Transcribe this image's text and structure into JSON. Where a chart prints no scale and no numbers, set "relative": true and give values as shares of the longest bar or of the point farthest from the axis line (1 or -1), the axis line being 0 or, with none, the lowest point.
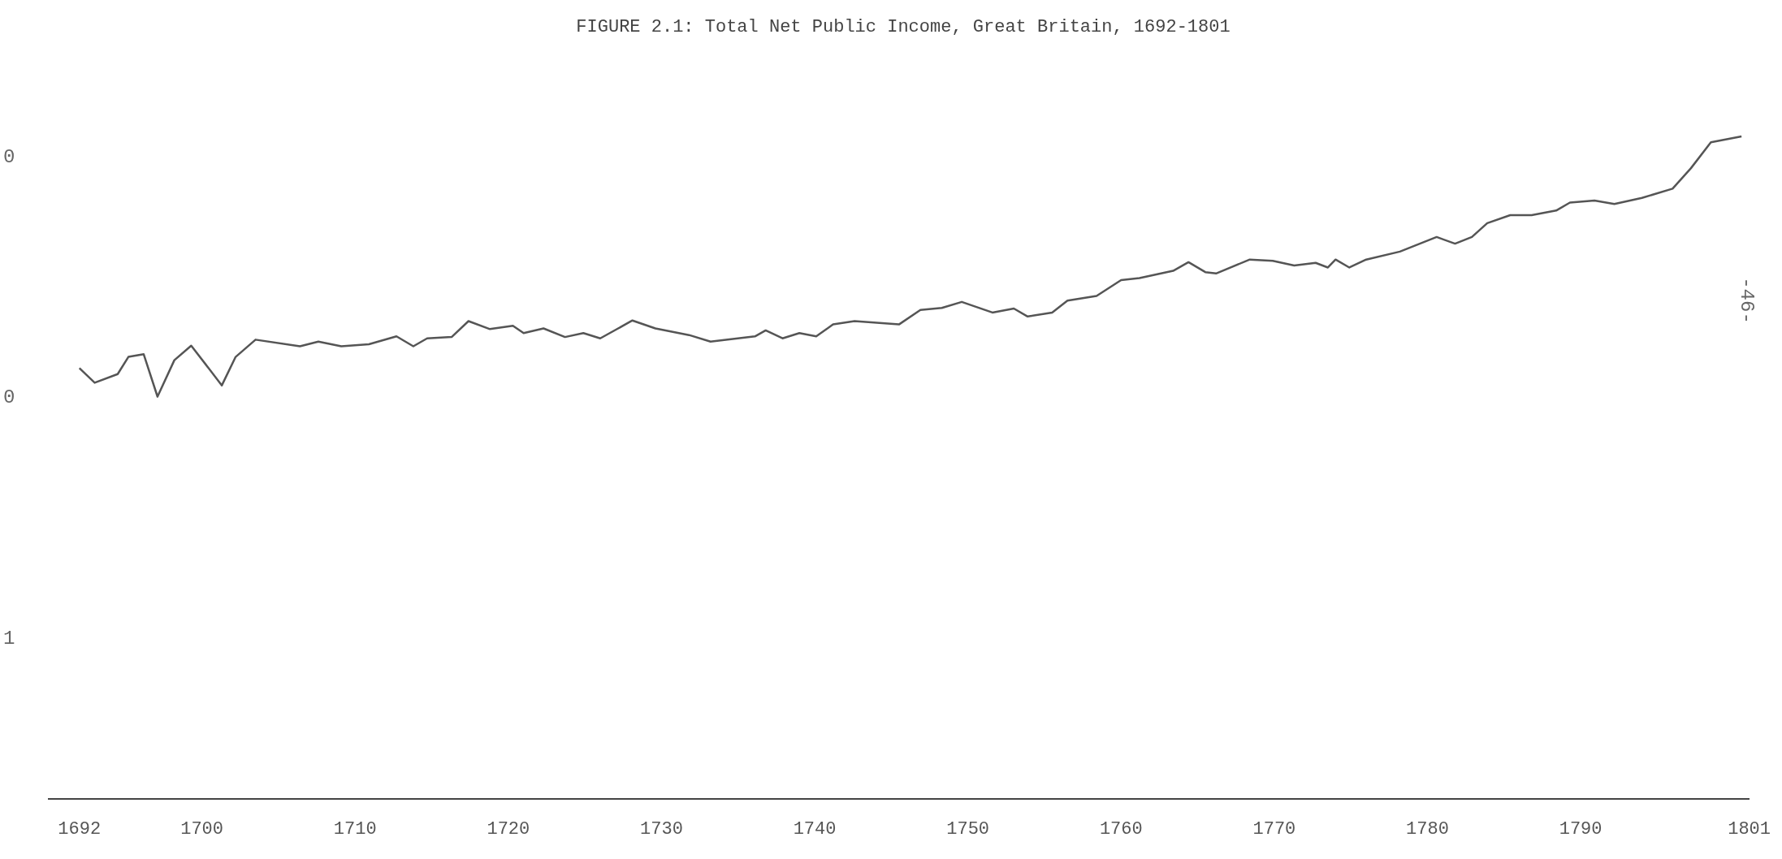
{
  "chart_data": {
    "type": "line",
    "title": "FIGURE 2.1: Total Net Public Income, Great Britain, 1692-1801",
    "relative": true,
    "color": "#555555",
    "x": [
      1692.0,
      1693.0,
      1694.5,
      1695.2,
      1696.2,
      1697.1,
      1698.2,
      1699.3,
      1701.3,
      1702.2,
      1703.5,
      1706.4,
      1707.6,
      1709.1,
      1710.9,
      1712.7,
      1713.8,
      1714.7,
      1716.3,
      1717.4,
      1718.8,
      1720.3,
      1721.0,
      1722.3,
      1723.7,
      1724.9,
      1726.0,
      1728.1,
      1729.6,
      1731.8,
      1733.2,
      1736.1,
      1736.8,
      1737.9,
      1739.0,
      1740.1,
      1741.2,
      1742.6,
      1745.5,
      1746.9,
      1748.3,
      1749.6,
      1751.6,
      1753.0,
      1753.9,
      1755.5,
      1756.5,
      1758.4,
      1760.0,
      1761.2,
      1763.4,
      1764.4,
      1765.5,
      1766.2,
      1768.4,
      1769.9,
      1771.3,
      1772.7,
      1773.5,
      1774.0,
      1774.9,
      1776.0,
      1778.2,
      1780.6,
      1781.8,
      1782.9,
      1783.9,
      1785.4,
      1786.8,
      1788.4,
      1789.3,
      1790.9,
      1792.2,
      1794.0,
      1796.0,
      1797.2,
      1798.5,
      1800.5
    ],
    "values": [
      0.65,
      0.628,
      0.641,
      0.667,
      0.671,
      0.607,
      0.662,
      0.684,
      0.624,
      0.667,
      0.693,
      0.683,
      0.69,
      0.683,
      0.686,
      0.698,
      0.683,
      0.695,
      0.697,
      0.721,
      0.709,
      0.714,
      0.703,
      0.71,
      0.697,
      0.703,
      0.695,
      0.722,
      0.71,
      0.7,
      0.69,
      0.698,
      0.707,
      0.695,
      0.703,
      0.698,
      0.716,
      0.721,
      0.716,
      0.738,
      0.741,
      0.75,
      0.734,
      0.74,
      0.728,
      0.734,
      0.752,
      0.759,
      0.783,
      0.786,
      0.797,
      0.81,
      0.795,
      0.793,
      0.814,
      0.812,
      0.805,
      0.809,
      0.802,
      0.814,
      0.802,
      0.814,
      0.826,
      0.848,
      0.838,
      0.848,
      0.869,
      0.881,
      0.881,
      0.888,
      0.9,
      0.903,
      0.898,
      0.907,
      0.921,
      0.952,
      0.991,
      1.0
    ],
    "xlim": [
      1690,
      1801
    ],
    "xticks": [
      1692,
      1700,
      1710,
      1720,
      1730,
      1740,
      1750,
      1760,
      1770,
      1780,
      1790,
      1801
    ],
    "grid": false,
    "legend": false,
    "marker": "none",
    "line_style": "solid",
    "annotations": [
      "0",
      "0",
      "1",
      "-46-"
    ]
  }
}
